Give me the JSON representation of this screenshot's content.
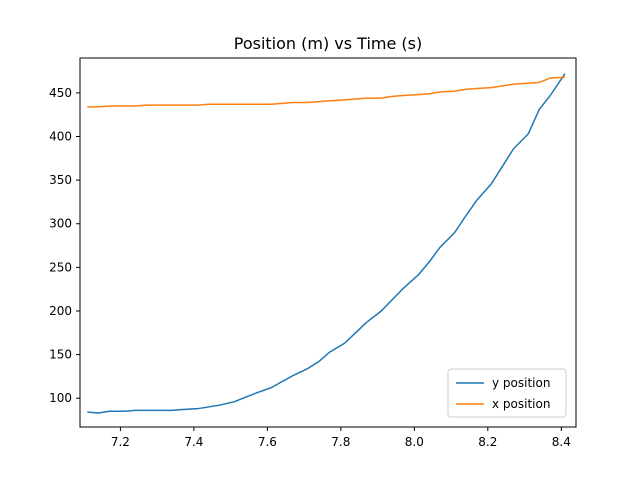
{
  "chart_data": {
    "type": "line",
    "title": "Position (m) vs Time (s)",
    "xlabel": "",
    "ylabel": "",
    "xlim": [
      7.09,
      8.44
    ],
    "ylim": [
      67,
      490
    ],
    "xticks": [
      7.2,
      7.4,
      7.6,
      7.8,
      8.0,
      8.2,
      8.4
    ],
    "xtick_labels": [
      "7.2",
      "7.4",
      "7.6",
      "7.8",
      "8.0",
      "8.2",
      "8.4"
    ],
    "yticks": [
      100,
      150,
      200,
      250,
      300,
      350,
      400,
      450
    ],
    "ytick_labels": [
      "100",
      "150",
      "200",
      "250",
      "300",
      "350",
      "400",
      "450"
    ],
    "grid": false,
    "legend_position": "bottom-right",
    "series": [
      {
        "name": "y position",
        "color": "#1f77b4",
        "x": [
          7.11,
          7.14,
          7.17,
          7.21,
          7.24,
          7.27,
          7.31,
          7.34,
          7.37,
          7.41,
          7.44,
          7.47,
          7.51,
          7.54,
          7.57,
          7.61,
          7.64,
          7.67,
          7.71,
          7.74,
          7.77,
          7.81,
          7.84,
          7.87,
          7.91,
          7.94,
          7.97,
          8.01,
          8.04,
          8.07,
          8.11,
          8.14,
          8.17,
          8.21,
          8.24,
          8.27,
          8.31,
          8.34,
          8.37,
          8.41
        ],
        "y": [
          84,
          83,
          85,
          85,
          86,
          86,
          86,
          86,
          87,
          88,
          90,
          92,
          96,
          101,
          106,
          112,
          119,
          126,
          134,
          142,
          153,
          163,
          175,
          187,
          200,
          213,
          226,
          241,
          256,
          273,
          290,
          309,
          327,
          346,
          366,
          386,
          403,
          431,
          447,
          472
        ]
      },
      {
        "name": "x position",
        "color": "#ff7f0e",
        "x": [
          7.11,
          7.14,
          7.17,
          7.21,
          7.24,
          7.27,
          7.31,
          7.34,
          7.37,
          7.41,
          7.44,
          7.47,
          7.51,
          7.54,
          7.57,
          7.61,
          7.64,
          7.67,
          7.71,
          7.74,
          7.77,
          7.81,
          7.84,
          7.87,
          7.91,
          7.94,
          7.97,
          8.01,
          8.04,
          8.07,
          8.11,
          8.14,
          8.17,
          8.21,
          8.24,
          8.27,
          8.31,
          8.34,
          8.37,
          8.41
        ],
        "y": [
          434,
          434,
          435,
          435,
          435,
          436,
          436,
          436,
          436,
          436,
          437,
          437,
          437,
          437,
          437,
          437,
          438,
          439,
          439,
          440,
          441,
          442,
          443,
          444,
          444,
          446,
          447,
          448,
          449,
          451,
          452,
          454,
          455,
          456,
          458,
          460,
          461,
          462,
          467,
          468
        ]
      }
    ]
  }
}
